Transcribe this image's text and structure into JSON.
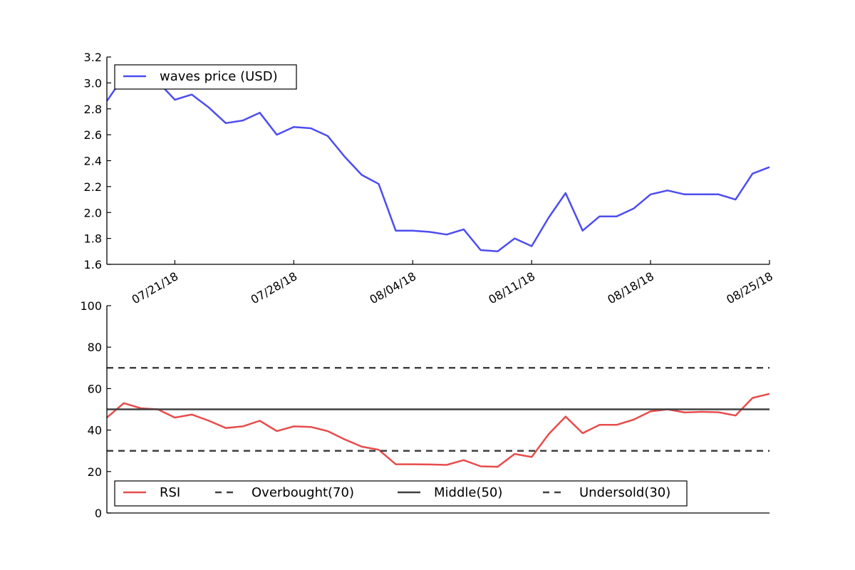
{
  "chart_data": [
    {
      "type": "line",
      "title": "",
      "xlabel": "",
      "ylabel": "",
      "ylim": [
        1.6,
        3.2
      ],
      "yticks": [
        1.6,
        1.8,
        2.0,
        2.2,
        2.4,
        2.6,
        2.8,
        3.0,
        3.2
      ],
      "ytick_labels": [
        "1.6",
        "1.8",
        "2.0",
        "2.2",
        "2.4",
        "2.6",
        "2.8",
        "3.0",
        "3.2"
      ],
      "xlim": [
        "07/17/18",
        "08/25/18"
      ],
      "xticks": [
        "07/21/18",
        "07/28/18",
        "08/04/18",
        "08/11/18",
        "08/18/18",
        "08/25/18"
      ],
      "grid": false,
      "legend": "upper-left",
      "x": [
        "07/17/18",
        "07/18/18",
        "07/19/18",
        "07/20/18",
        "07/21/18",
        "07/22/18",
        "07/23/18",
        "07/24/18",
        "07/25/18",
        "07/26/18",
        "07/27/18",
        "07/28/18",
        "07/29/18",
        "07/30/18",
        "07/31/18",
        "08/01/18",
        "08/02/18",
        "08/03/18",
        "08/04/18",
        "08/05/18",
        "08/06/18",
        "08/07/18",
        "08/08/18",
        "08/09/18",
        "08/10/18",
        "08/11/18",
        "08/12/18",
        "08/13/18",
        "08/14/18",
        "08/15/18",
        "08/16/18",
        "08/17/18",
        "08/18/18",
        "08/19/18",
        "08/20/18",
        "08/21/18",
        "08/22/18",
        "08/23/18",
        "08/24/18",
        "08/25/18"
      ],
      "series": [
        {
          "name": "waves price (USD)",
          "color": "#4d4df0",
          "values": [
            2.86,
            3.05,
            3.06,
            3.01,
            2.87,
            2.91,
            2.81,
            2.69,
            2.71,
            2.77,
            2.6,
            2.66,
            2.65,
            2.59,
            2.43,
            2.29,
            2.22,
            1.86,
            1.86,
            1.85,
            1.83,
            1.87,
            1.71,
            1.7,
            1.8,
            1.74,
            1.96,
            2.15,
            1.86,
            1.97,
            1.97,
            2.03,
            2.14,
            2.17,
            2.14,
            2.14,
            2.14,
            2.1,
            2.3,
            2.35
          ]
        }
      ]
    },
    {
      "type": "line",
      "title": "",
      "xlabel": "",
      "ylabel": "",
      "ylim": [
        0,
        100
      ],
      "yticks": [
        0,
        20,
        40,
        60,
        80,
        100
      ],
      "ytick_labels": [
        "0",
        "20",
        "40",
        "60",
        "80",
        "100"
      ],
      "grid": false,
      "legend": "lower-left",
      "x": [
        "07/17/18",
        "07/18/18",
        "07/19/18",
        "07/20/18",
        "07/21/18",
        "07/22/18",
        "07/23/18",
        "07/24/18",
        "07/25/18",
        "07/26/18",
        "07/27/18",
        "07/28/18",
        "07/29/18",
        "07/30/18",
        "07/31/18",
        "08/01/18",
        "08/02/18",
        "08/03/18",
        "08/04/18",
        "08/05/18",
        "08/06/18",
        "08/07/18",
        "08/08/18",
        "08/09/18",
        "08/10/18",
        "08/11/18",
        "08/12/18",
        "08/13/18",
        "08/14/18",
        "08/15/18",
        "08/16/18",
        "08/17/18",
        "08/18/18",
        "08/19/18",
        "08/20/18",
        "08/21/18",
        "08/22/18",
        "08/23/18",
        "08/24/18",
        "08/25/18"
      ],
      "series": [
        {
          "name": "RSI",
          "color": "#e84c4c",
          "style": "solid",
          "values": [
            46,
            53,
            50.5,
            50,
            46,
            47.5,
            44.5,
            41,
            41.8,
            44.5,
            39.5,
            41.8,
            41.5,
            39.5,
            35.5,
            32,
            30.5,
            23.5,
            23.5,
            23.4,
            23.2,
            25.5,
            22.5,
            22.3,
            28.5,
            27,
            38,
            46.5,
            38.5,
            42.5,
            42.5,
            45,
            49,
            50,
            48.5,
            48.8,
            48.6,
            47,
            55.5,
            57.5
          ]
        },
        {
          "name": "Overbought(70)",
          "color": "#404040",
          "style": "dashed",
          "constant": 70
        },
        {
          "name": "Middle(50)",
          "color": "#404040",
          "style": "solid",
          "constant": 50
        },
        {
          "name": "Undersold(30)",
          "color": "#404040",
          "style": "dashed",
          "constant": 30
        }
      ]
    }
  ]
}
